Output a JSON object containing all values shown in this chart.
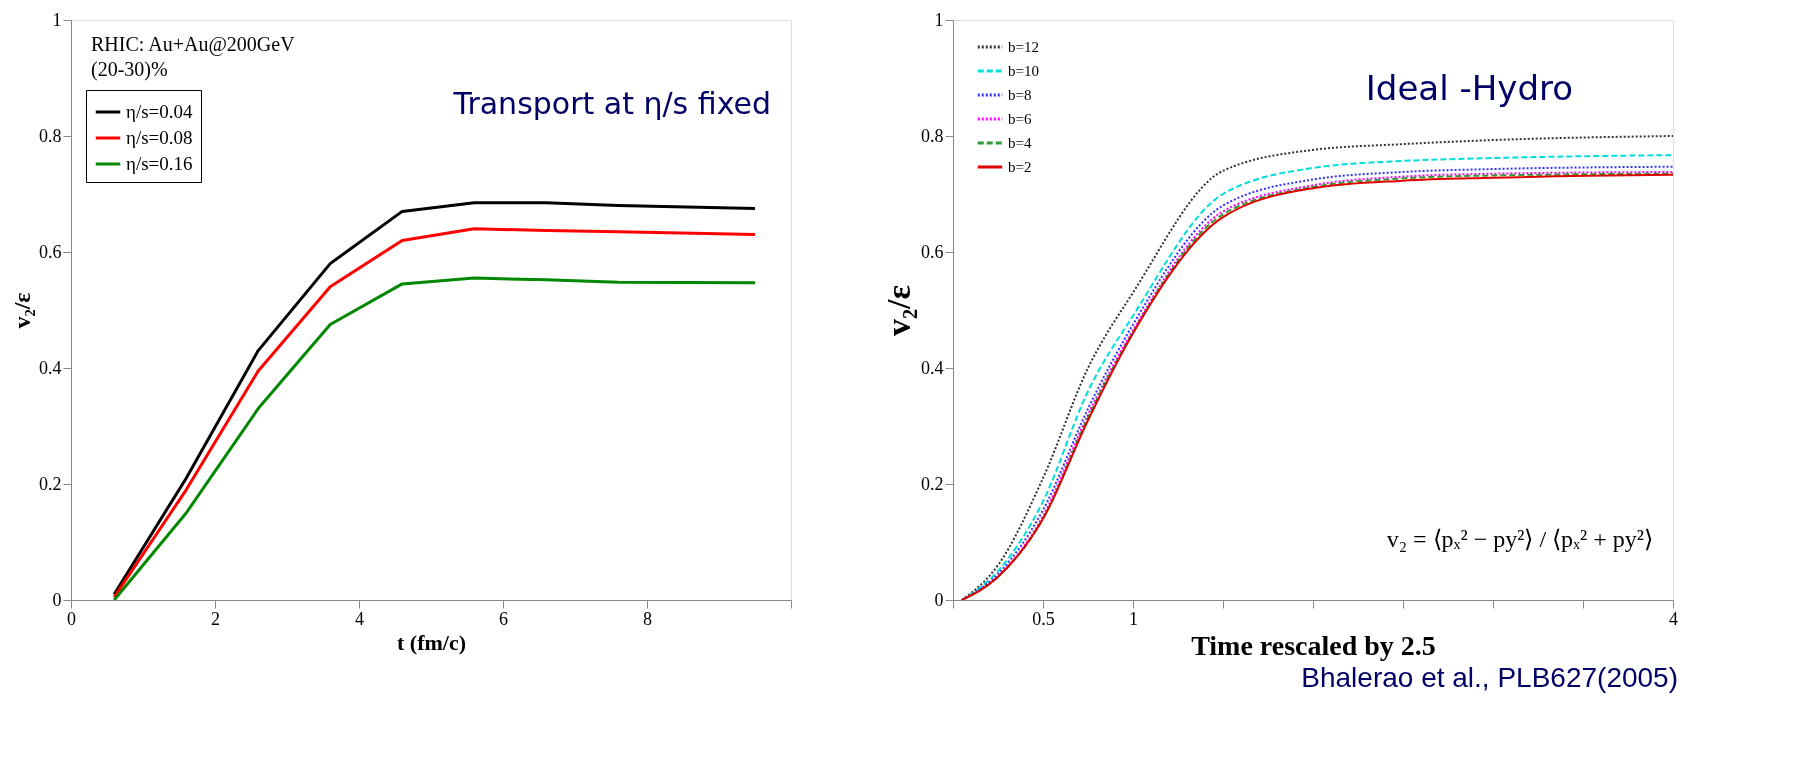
{
  "chart_data": [
    {
      "type": "line",
      "xlabel": "t (fm/c)",
      "ylabel": "v₂/ε",
      "xlim": [
        0,
        10
      ],
      "ylim": [
        0,
        1
      ],
      "xticks": [
        0,
        2,
        4,
        6,
        8,
        {
          "value": 10,
          "label": null
        }
      ],
      "yticks": [
        0,
        0.2,
        0.4,
        0.6,
        0.8,
        1
      ],
      "grid": false,
      "legend": "top left",
      "line_style": "solid",
      "annotations": [
        "RHIC: Au+Au@200GeV",
        "(20-30)%",
        "Transport at η/s fixed"
      ],
      "x": [
        0.6,
        1.6,
        2.6,
        3.6,
        4.6,
        5.6,
        6.6,
        7.6,
        9.5
      ],
      "series": [
        {
          "name": "η/s=0.04",
          "color": "#000000",
          "values": [
            0.01,
            0.21,
            0.43,
            0.58,
            0.67,
            0.685,
            0.685,
            0.68,
            0.675
          ]
        },
        {
          "name": "η/s=0.08",
          "color": "#ff0000",
          "values": [
            0.005,
            0.19,
            0.395,
            0.54,
            0.62,
            0.64,
            0.637,
            0.635,
            0.63
          ]
        },
        {
          "name": "η/s=0.16",
          "color": "#008800",
          "values": [
            0.0,
            0.15,
            0.33,
            0.475,
            0.545,
            0.555,
            0.552,
            0.548,
            0.547
          ]
        }
      ]
    },
    {
      "type": "line",
      "xlabel": "Time rescaled by 2.5",
      "ylabel": "v₂/ε",
      "xlim": [
        0,
        4
      ],
      "ylim": [
        0,
        1
      ],
      "xticks": [
        {
          "value": 0,
          "label": null
        },
        0.5,
        1,
        {
          "value": 1.5,
          "label": null
        },
        {
          "value": 2,
          "label": null
        },
        {
          "value": 2.5,
          "label": null
        },
        {
          "value": 3,
          "label": null
        },
        {
          "value": 3.5,
          "label": null
        },
        4
      ],
      "yticks": [
        0,
        0.2,
        0.4,
        0.6,
        0.8,
        1
      ],
      "grid": false,
      "legend": "top left",
      "annotations": [
        "Ideal -Hydro",
        "v₂ = ⟨pₓ² − py²⟩ / ⟨pₓ² + py²⟩",
        "Bhalerao et al., PLB627(2005)"
      ],
      "x": [
        0.05,
        0.25,
        0.5,
        0.75,
        1,
        1.5,
        2,
        2.5,
        3,
        4
      ],
      "series": [
        {
          "name": "b=12",
          "color": "#333333",
          "line_style": "dotted",
          "values": [
            0,
            0.06,
            0.21,
            0.4,
            0.53,
            0.74,
            0.776,
            0.786,
            0.793,
            0.8
          ]
        },
        {
          "name": "b=10",
          "color": "#00dddd",
          "line_style": "dashed",
          "values": [
            0,
            0.05,
            0.17,
            0.36,
            0.49,
            0.7,
            0.745,
            0.757,
            0.762,
            0.767
          ]
        },
        {
          "name": "b=8",
          "color": "#3333ff",
          "line_style": "dotted",
          "values": [
            0,
            0.045,
            0.155,
            0.33,
            0.475,
            0.68,
            0.725,
            0.738,
            0.743,
            0.747
          ]
        },
        {
          "name": "b=6",
          "color": "#ff00ff",
          "line_style": "dotted",
          "values": [
            0,
            0.04,
            0.145,
            0.32,
            0.465,
            0.67,
            0.715,
            0.73,
            0.735,
            0.738
          ]
        },
        {
          "name": "b=4",
          "color": "#339933",
          "line_style": "dashed",
          "values": [
            0,
            0.04,
            0.14,
            0.315,
            0.462,
            0.665,
            0.712,
            0.727,
            0.732,
            0.735
          ]
        },
        {
          "name": "b=2",
          "color": "#e00000",
          "line_style": "solid",
          "values": [
            0,
            0.04,
            0.14,
            0.31,
            0.46,
            0.66,
            0.71,
            0.723,
            0.728,
            0.733
          ]
        }
      ]
    }
  ]
}
